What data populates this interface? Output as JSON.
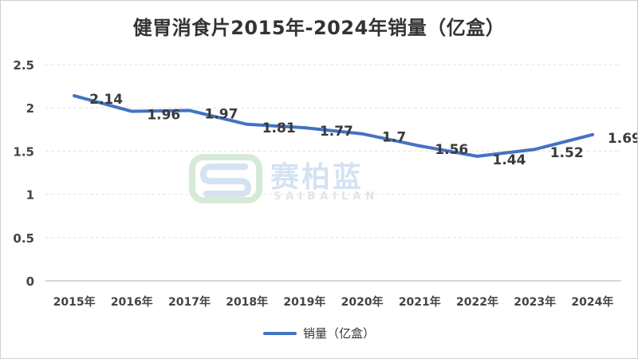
{
  "chart_data": {
    "type": "line",
    "title": "健胃消食片2015年-2024年销量（亿盒）",
    "categories": [
      "2015年",
      "2016年",
      "2017年",
      "2018年",
      "2019年",
      "2020年",
      "2021年",
      "2022年",
      "2023年",
      "2024年"
    ],
    "series": [
      {
        "name": "销量（亿盒）",
        "values": [
          2.14,
          1.96,
          1.97,
          1.81,
          1.77,
          1.7,
          1.56,
          1.44,
          1.52,
          1.69
        ]
      }
    ],
    "data_labels": [
      "2.14",
      "1.96",
      "1.97",
      "1.81",
      "1.77",
      "1.7",
      "1.56",
      "1.44",
      "1.52",
      "1.69"
    ],
    "ylim": [
      0,
      2.5
    ],
    "yticks": [
      "0",
      "0.5",
      "1",
      "1.5",
      "2",
      "2.5"
    ],
    "grid": true,
    "legend_position": "bottom",
    "line_color": "#4472c4"
  },
  "watermark": {
    "brand": "赛柏蓝",
    "latin": "SAIBAILAN",
    "color": "#3f7fc8"
  }
}
